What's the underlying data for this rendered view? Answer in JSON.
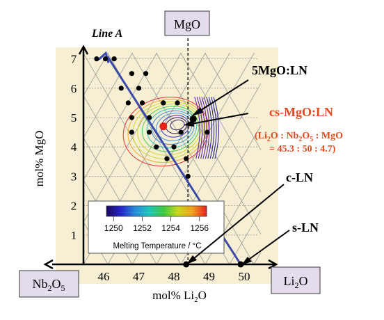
{
  "chart_data": {
    "type": "scatter",
    "xlabel": "mol% Li",
    "xlabel_sub": "2",
    "xlabel_tail": "O",
    "ylabel": "mol% MgO",
    "x_ticks": [
      "46",
      "47",
      "48",
      "49",
      "50"
    ],
    "y_ticks": [
      "1",
      "2",
      "3",
      "4",
      "5",
      "6",
      "7"
    ],
    "xlim": [
      45.5,
      50.6
    ],
    "ylim": [
      0,
      7.3
    ],
    "corner_labels": {
      "top": "MgO",
      "left_main": "Nb",
      "left_sub1": "2",
      "left_mid": "O",
      "left_sub2": "5",
      "right_main": "Li",
      "right_sub": "2",
      "right_tail": "O"
    },
    "line_a": {
      "label": "Line A",
      "from": [
        46.1,
        7.1
      ],
      "to": [
        49.9,
        0
      ]
    },
    "dashed_vertical_x": 48.4,
    "composition_points": [
      [
        45.8,
        7.0
      ],
      [
        46.05,
        7.0
      ],
      [
        46.3,
        7.0
      ],
      [
        46.8,
        6.5
      ],
      [
        47.2,
        6.5
      ],
      [
        46.5,
        6.0
      ],
      [
        47.0,
        6.0
      ],
      [
        46.7,
        5.5
      ],
      [
        47.1,
        5.5
      ],
      [
        47.7,
        5.5
      ],
      [
        48.1,
        5.5
      ],
      [
        46.8,
        5.0
      ],
      [
        47.3,
        5.0
      ],
      [
        46.8,
        4.5
      ],
      [
        47.3,
        4.5
      ],
      [
        48.2,
        4.5
      ],
      [
        48.95,
        4.5
      ],
      [
        47.5,
        4.0
      ],
      [
        48.0,
        4.0
      ],
      [
        47.8,
        3.6
      ],
      [
        48.35,
        3.6
      ],
      [
        48.4,
        3.0
      ],
      [
        48.3,
        2.0
      ],
      [
        48.35,
        0.0
      ],
      [
        49.9,
        0.0
      ]
    ],
    "special_points": {
      "five_mgo_ln": [
        48.55,
        4.95
      ],
      "cs_mgo_ln": [
        47.7,
        4.7
      ],
      "c_ln": [
        48.35,
        0.0
      ],
      "s_ln": [
        49.9,
        0.0
      ]
    },
    "annotations": {
      "five_mgo_ln": "5MgO:LN",
      "cs_mgo_ln": "cs-MgO:LN",
      "composition_open": "(Li",
      "composition_sub1": "2",
      "composition_mid": "O : Nb",
      "composition_sub2": "2",
      "composition_mid2": "O",
      "composition_sub3": "5",
      "composition_tail": " : MgO",
      "composition_values": "= 45.3 : 50 : 4.7)",
      "c_ln": "c-LN",
      "s_ln": "s-LN"
    },
    "colorbar": {
      "ticks": [
        "1250",
        "1252",
        "1254",
        "1256"
      ],
      "label": "Melting Temperature  /  °C",
      "range": [
        1249.5,
        1256.5
      ],
      "colors": [
        "#1a0a5a",
        "#2525c8",
        "#2a8ad8",
        "#1fc6b8",
        "#40c840",
        "#c8d820",
        "#f0a020",
        "#e82020"
      ]
    },
    "colors": {
      "background_panel": "#f6efd3",
      "line_a": "#3a48a8",
      "highlight_point": "#e8201a",
      "highlight_text": "#e04a20",
      "box_fill": "#e4dcec",
      "grid": "#9a9a9a"
    }
  }
}
